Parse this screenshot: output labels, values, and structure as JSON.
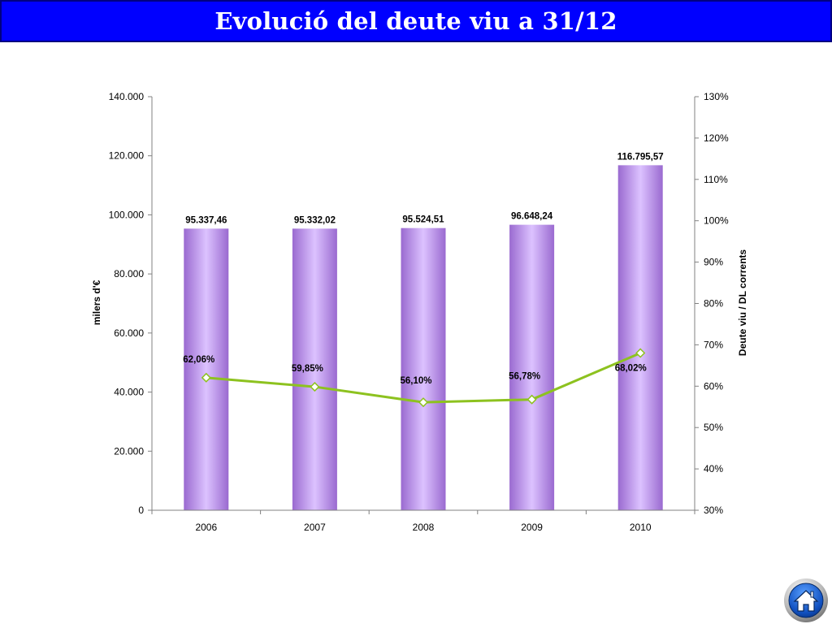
{
  "page_title": "Evolució del deute viu a 31/12",
  "home_icon": "home-icon",
  "chart_data": {
    "type": "bar",
    "categories": [
      "2006",
      "2007",
      "2008",
      "2009",
      "2010"
    ],
    "xlabel": "",
    "ylabel": "milers d'€",
    "y2label": "Deute viu / DL corrents",
    "ylim": [
      0,
      140000
    ],
    "y2lim": [
      30,
      130
    ],
    "yticks": [
      "0",
      "20.000",
      "40.000",
      "60.000",
      "80.000",
      "100.000",
      "120.000",
      "140.000"
    ],
    "y2ticks": [
      "30%",
      "40%",
      "50%",
      "60%",
      "70%",
      "80%",
      "90%",
      "100%",
      "110%",
      "120%",
      "130%"
    ],
    "grid": false,
    "bars": {
      "values": [
        95337.46,
        95332.02,
        95524.51,
        96648.24,
        116795.57
      ],
      "labels": [
        "95.337,46",
        "95.332,02",
        "95.524,51",
        "96.648,24",
        "116.795,57"
      ],
      "color": "#b88ae8"
    },
    "line": {
      "axis": "secondary",
      "values": [
        62.06,
        59.85,
        56.1,
        56.78,
        68.02
      ],
      "labels": [
        "62,06%",
        "59,85%",
        "56,10%",
        "56,78%",
        "68,02%"
      ],
      "color": "#8dc21f"
    }
  }
}
